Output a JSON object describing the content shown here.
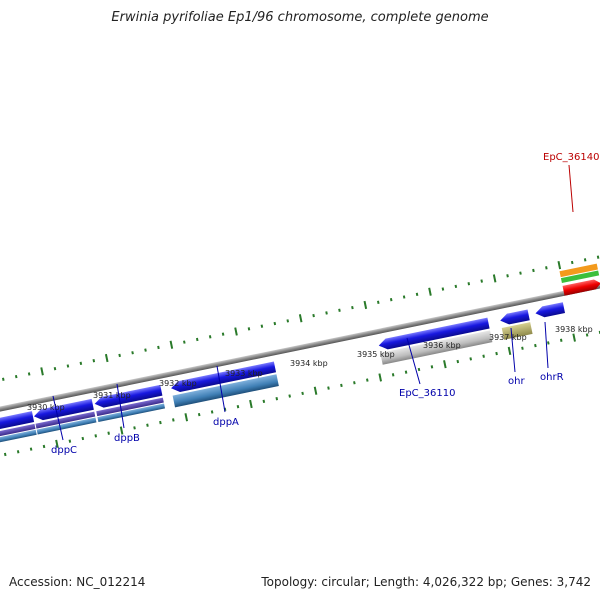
{
  "title": "Erwinia pyrifoliae Ep1/96 chromosome, complete genome",
  "accession": "Accession: NC_012214",
  "summary": "Topology: circular; Length: 4,026,322 bp; Genes: 3,742",
  "colors": {
    "gene_label": "#0000aa",
    "highlight_label": "#bb0000",
    "tick": "#2a7a2a",
    "backbone": "#8a8a8a",
    "cds": "#1c1cd8"
  },
  "kbp_labels": [
    "3930 kbp",
    "3931 kbp",
    "3932 kbp",
    "3933 kbp",
    "3934 kbp",
    "3935 kbp",
    "3936 kbp",
    "3937 kbp",
    "3938 kbp"
  ],
  "gene_labels": [
    "dppC",
    "dppB",
    "dppA",
    "EpC_36110",
    "ohr",
    "ohrR",
    "EpC_36140"
  ]
}
